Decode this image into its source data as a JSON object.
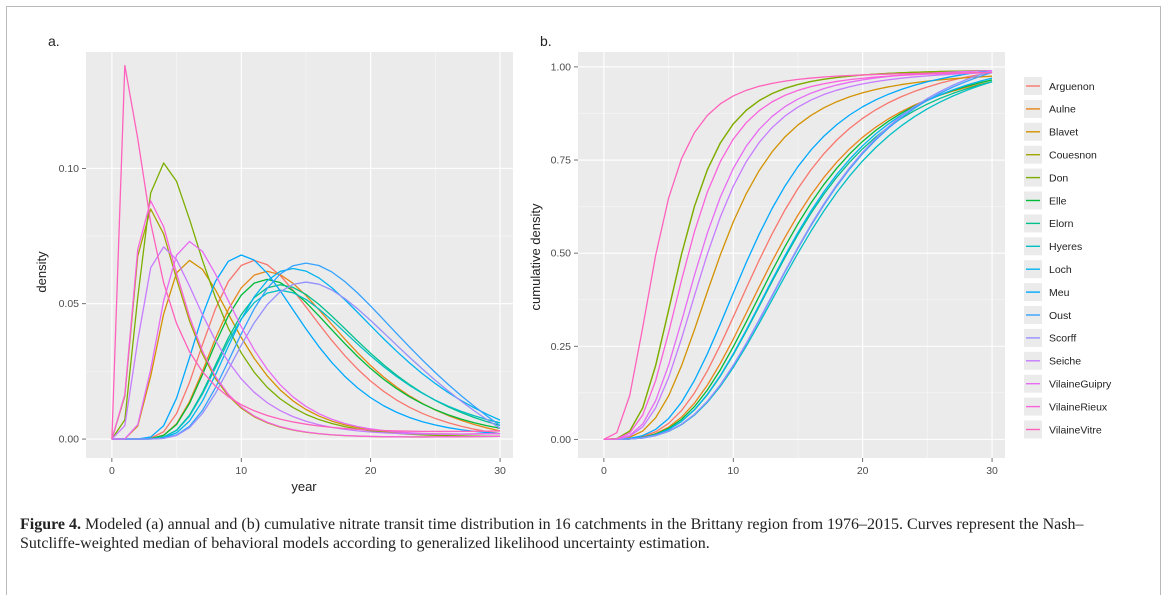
{
  "caption": {
    "label": "Figure 4.",
    "text": " Modeled (a) annual and (b) cumulative nitrate transit time distribution in 16 catchments in the Brittany region from 1976–2015. Curves represent the Nash–Sutcliffe-weighted median of behavioral models according to generalized likelihood uncertainty estimation."
  },
  "chart_data": [
    {
      "panel": "a.",
      "type": "line",
      "xlabel": "year",
      "ylabel": "density",
      "xlim": [
        -2,
        31
      ],
      "ylim": [
        -0.007,
        0.143
      ],
      "xticks": [
        0,
        10,
        20,
        30
      ],
      "yticks": [
        0.0,
        0.05,
        0.1
      ],
      "ytick_labels": [
        "0.00",
        "0.05",
        "0.10"
      ],
      "grid": true,
      "background": "#ebebeb",
      "series": [
        {
          "name": "Arguenon",
          "color": "#F8766D",
          "peak_x": 11.0,
          "peak_y": 0.066,
          "tail_y": 0.002
        },
        {
          "name": "Aulne",
          "color": "#E7861B",
          "peak_x": 12.0,
          "peak_y": 0.062,
          "tail_y": 0.003
        },
        {
          "name": "Blavet",
          "color": "#D39200",
          "peak_x": 6.0,
          "peak_y": 0.066,
          "tail_y": 0.002
        },
        {
          "name": "Couesnon",
          "color": "#A3A500",
          "peak_x": 3.0,
          "peak_y": 0.085,
          "tail_y": 0.001
        },
        {
          "name": "Don",
          "color": "#7CAE00",
          "peak_x": 4.0,
          "peak_y": 0.102,
          "tail_y": 0.001
        },
        {
          "name": "Elle",
          "color": "#00BA38",
          "peak_x": 12.0,
          "peak_y": 0.059,
          "tail_y": 0.004
        },
        {
          "name": "Elorn",
          "color": "#00C08B",
          "peak_x": 13.0,
          "peak_y": 0.057,
          "tail_y": 0.005
        },
        {
          "name": "Hyeres",
          "color": "#00BFC4",
          "peak_x": 13.0,
          "peak_y": 0.055,
          "tail_y": 0.006
        },
        {
          "name": "Loch",
          "color": "#00B4F0",
          "peak_x": 14.0,
          "peak_y": 0.063,
          "tail_y": 0.007
        },
        {
          "name": "Meu",
          "color": "#00A9FF",
          "peak_x": 10.0,
          "peak_y": 0.068,
          "tail_y": 0.002
        },
        {
          "name": "Oust",
          "color": "#35A2FF",
          "peak_x": 15.0,
          "peak_y": 0.065,
          "tail_y": 0.005
        },
        {
          "name": "Scorff",
          "color": "#9590FF",
          "peak_x": 15.0,
          "peak_y": 0.058,
          "tail_y": 0.004
        },
        {
          "name": "Seiche",
          "color": "#C77CFF",
          "peak_x": 4.0,
          "peak_y": 0.071,
          "tail_y": 0.002
        },
        {
          "name": "VilaineGuipry",
          "color": "#E76BF3",
          "peak_x": 6.0,
          "peak_y": 0.073,
          "tail_y": 0.002
        },
        {
          "name": "VilaineRieux",
          "color": "#FA62DB",
          "peak_x": 3.0,
          "peak_y": 0.088,
          "tail_y": 0.001
        },
        {
          "name": "VilaineVitre",
          "color": "#FF62BC",
          "peak_x": 1.0,
          "peak_y": 0.138,
          "tail_y": 0.003
        }
      ]
    },
    {
      "panel": "b.",
      "type": "line",
      "xlabel": "",
      "ylabel": "cumulative density",
      "xlim": [
        -2,
        31
      ],
      "ylim": [
        -0.05,
        1.04
      ],
      "xticks": [
        0,
        10,
        20,
        30
      ],
      "yticks": [
        0.0,
        0.25,
        0.5,
        0.75,
        1.0
      ],
      "ytick_labels": [
        "0.00",
        "0.25",
        "0.50",
        "0.75",
        "1.00"
      ],
      "grid": true,
      "background": "#ebebeb",
      "series": [
        {
          "name": "Arguenon",
          "color": "#F8766D",
          "half_x": 12.5,
          "final_y": 0.985
        },
        {
          "name": "Aulne",
          "color": "#E7861B",
          "half_x": 13.5,
          "final_y": 0.96
        },
        {
          "name": "Blavet",
          "color": "#D39200",
          "half_x": 9.0,
          "final_y": 0.975
        },
        {
          "name": "Couesnon",
          "color": "#A3A500",
          "half_x": 6.0,
          "final_y": 0.99
        },
        {
          "name": "Don",
          "color": "#7CAE00",
          "half_x": 6.0,
          "final_y": 0.99
        },
        {
          "name": "Elle",
          "color": "#00BA38",
          "half_x": 14.0,
          "final_y": 0.965
        },
        {
          "name": "Elorn",
          "color": "#00C08B",
          "half_x": 14.5,
          "final_y": 0.96
        },
        {
          "name": "Hyeres",
          "color": "#00BFC4",
          "half_x": 15.5,
          "final_y": 0.96
        },
        {
          "name": "Loch",
          "color": "#00B4F0",
          "half_x": 14.5,
          "final_y": 0.97
        },
        {
          "name": "Meu",
          "color": "#00A9FF",
          "half_x": 11.5,
          "final_y": 0.99
        },
        {
          "name": "Oust",
          "color": "#35A2FF",
          "half_x": 15.5,
          "final_y": 0.985
        },
        {
          "name": "Scorff",
          "color": "#9590FF",
          "half_x": 15.5,
          "final_y": 0.99
        },
        {
          "name": "Seiche",
          "color": "#C77CFF",
          "half_x": 8.0,
          "final_y": 0.985
        },
        {
          "name": "VilaineGuipry",
          "color": "#E76BF3",
          "half_x": 7.5,
          "final_y": 0.99
        },
        {
          "name": "VilaineRieux",
          "color": "#FA62DB",
          "half_x": 6.5,
          "final_y": 0.985
        },
        {
          "name": "VilaineVitre",
          "color": "#FF62BC",
          "half_x": 4.0,
          "final_y": 0.985
        }
      ]
    }
  ]
}
